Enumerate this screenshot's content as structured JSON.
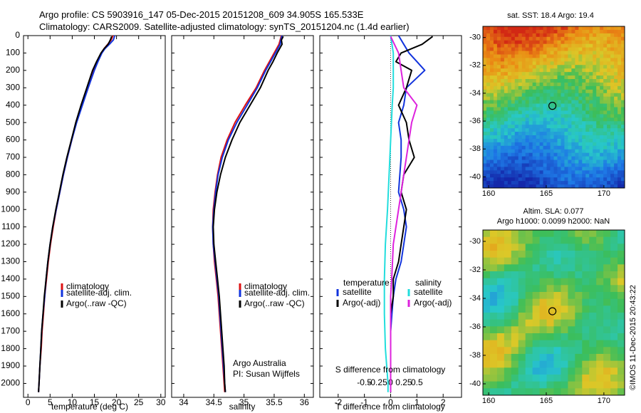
{
  "header": {
    "line1": "Argo profile: CS 5903916_147 05-Dec-2015 20151208_609 34.905S 165.533E",
    "line2": "Climatology: CARS2009. Satellite-adjusted climatology: synTS_20151204.nc (1.4d earlier)"
  },
  "colors": {
    "red": "#dd1111",
    "blue": "#1133dd",
    "black": "#000000",
    "cyan": "#22dddd",
    "magenta": "#dd22dd"
  },
  "chart_data": [
    {
      "type": "line",
      "xlabel": "temperature (deg C)",
      "ylim": [
        2080,
        0
      ],
      "xlim": [
        -1,
        31
      ],
      "xticks": [
        0,
        5,
        10,
        15,
        20,
        25,
        30
      ],
      "yticks": [
        0,
        100,
        200,
        300,
        400,
        500,
        600,
        700,
        800,
        900,
        1000,
        1100,
        1200,
        1300,
        1400,
        1500,
        1600,
        1700,
        1800,
        1900,
        2000
      ],
      "legend": [
        "climatology",
        "satellite-adj. clim.",
        "Argo(..raw -QC)"
      ],
      "series": [
        {
          "name": "climatology",
          "color": "red",
          "depth": [
            0,
            25,
            50,
            75,
            100,
            150,
            200,
            300,
            400,
            500,
            600,
            700,
            800,
            900,
            1000,
            1100,
            1200,
            1300,
            1400,
            1500,
            1600,
            1700,
            1800,
            1900,
            2000,
            2050
          ],
          "values": [
            19.2,
            18.8,
            18.0,
            17.2,
            16.6,
            15.7,
            14.9,
            13.6,
            12.2,
            10.9,
            9.9,
            8.9,
            8.0,
            7.2,
            6.4,
            5.7,
            5.1,
            4.6,
            4.2,
            3.8,
            3.5,
            3.2,
            3.0,
            2.7,
            2.5,
            2.4
          ]
        },
        {
          "name": "satellite-adj. clim.",
          "color": "blue",
          "depth": [
            0,
            25,
            50,
            75,
            100,
            150,
            200,
            300,
            400,
            500,
            600,
            700,
            800,
            900,
            1000,
            1100,
            1200,
            1300,
            1400,
            1500,
            1600,
            1700,
            1800,
            1900,
            2000,
            2050
          ],
          "values": [
            19.6,
            19.3,
            18.4,
            17.4,
            16.7,
            15.8,
            15.0,
            13.6,
            12.3,
            11.0,
            9.9,
            8.9,
            8.0,
            7.2,
            6.4,
            5.6,
            5.0,
            4.5,
            4.1,
            3.8,
            3.4,
            3.1,
            2.9,
            2.7,
            2.5,
            2.4
          ]
        },
        {
          "name": "Argo(..raw -QC)",
          "color": "black",
          "depth": [
            5,
            25,
            50,
            75,
            100,
            150,
            200,
            300,
            400,
            500,
            600,
            700,
            800,
            900,
            1000,
            1100,
            1200,
            1300,
            1400,
            1500,
            1600,
            1700,
            1800,
            1900,
            2000,
            2050
          ],
          "values": [
            18.9,
            18.6,
            18.1,
            17.2,
            16.5,
            15.5,
            14.6,
            13.3,
            12.0,
            10.8,
            9.8,
            8.8,
            7.9,
            7.1,
            6.3,
            5.6,
            5.0,
            4.5,
            4.1,
            3.7,
            3.4,
            3.1,
            2.9,
            2.7,
            2.5,
            2.4
          ]
        }
      ]
    },
    {
      "type": "line",
      "xlabel": "salinity",
      "ylim": [
        2080,
        0
      ],
      "xlim": [
        33.8,
        36.15
      ],
      "xticks": [
        34,
        34.5,
        35,
        35.5,
        36
      ],
      "legend": [
        "climatology",
        "satellite-adj. clim.",
        "Argo(..raw -QC)"
      ],
      "annotation": [
        "Argo Australia",
        "PI: Susan Wijffels"
      ],
      "series": [
        {
          "name": "climatology",
          "color": "red",
          "depth": [
            0,
            25,
            50,
            100,
            150,
            200,
            300,
            400,
            500,
            600,
            700,
            800,
            900,
            1000,
            1100,
            1200,
            1300,
            1400,
            1500,
            1600,
            1700,
            1800,
            1900,
            2000,
            2050
          ],
          "values": [
            35.62,
            35.6,
            35.58,
            35.5,
            35.42,
            35.34,
            35.2,
            35.02,
            34.85,
            34.72,
            34.62,
            34.56,
            34.52,
            34.49,
            34.48,
            34.49,
            34.51,
            34.54,
            34.57,
            34.59,
            34.61,
            34.63,
            34.65,
            34.67,
            34.68
          ]
        },
        {
          "name": "satellite-adj. clim.",
          "color": "blue",
          "depth": [
            0,
            25,
            50,
            100,
            150,
            200,
            300,
            400,
            500,
            600,
            700,
            800,
            900,
            1000,
            1100,
            1200,
            1300,
            1400,
            1500,
            1600,
            1700,
            1800,
            1900,
            2000,
            2050
          ],
          "values": [
            35.63,
            35.61,
            35.6,
            35.52,
            35.44,
            35.36,
            35.22,
            35.05,
            34.88,
            34.74,
            34.64,
            34.57,
            34.53,
            34.5,
            34.48,
            34.49,
            34.52,
            34.55,
            34.58,
            34.6,
            34.62,
            34.64,
            34.66,
            34.68,
            34.69
          ]
        },
        {
          "name": "Argo(..raw -QC)",
          "color": "black",
          "depth": [
            5,
            25,
            50,
            100,
            150,
            200,
            300,
            400,
            500,
            600,
            700,
            800,
            900,
            1000,
            1100,
            1200,
            1300,
            1400,
            1500,
            1600,
            1700,
            1800,
            1900,
            2000,
            2050
          ],
          "values": [
            35.65,
            35.62,
            35.63,
            35.55,
            35.48,
            35.4,
            35.27,
            35.1,
            34.93,
            34.8,
            34.69,
            34.61,
            34.55,
            34.51,
            34.49,
            34.5,
            34.53,
            34.56,
            34.59,
            34.61,
            34.63,
            34.65,
            34.67,
            34.68,
            34.69
          ]
        }
      ]
    },
    {
      "type": "line",
      "xlabel": "T difference from climatology",
      "top_label": "S difference from climatology",
      "ylim": [
        2080,
        0
      ],
      "xlim": [
        -2.7,
        2.7
      ],
      "xticks": [
        -2,
        -1,
        0,
        1,
        2
      ],
      "top_ticks": [
        "-0.5",
        "-0.25",
        "0",
        "0.25",
        "0.5"
      ],
      "legend_left_title": "temperature",
      "legend_right_title": "salinity",
      "legend": [
        "satellite",
        "Argo(-adj)",
        "satellite",
        "Argo(-adj)"
      ],
      "series": [
        {
          "name": "satellite",
          "color": "blue",
          "depth": [
            0,
            50,
            100,
            150,
            200,
            300,
            400,
            500,
            600,
            700,
            800,
            900,
            1000,
            1100,
            1200,
            1300,
            1400,
            1500,
            1600,
            1700,
            1800,
            1900,
            2000,
            2050
          ],
          "values": [
            0.3,
            0.5,
            0.7,
            1.0,
            1.3,
            0.6,
            0.5,
            0.3,
            0.4,
            0.4,
            0.35,
            0.3,
            0.5,
            0.6,
            0.5,
            0.4,
            0.2,
            0.1,
            0.05,
            0.0,
            0.0,
            0.0,
            0.0,
            0.0
          ]
        },
        {
          "name": "Argo(-adj)",
          "color": "black",
          "depth": [
            5,
            50,
            100,
            150,
            200,
            300,
            400,
            500,
            600,
            700,
            800,
            900,
            1000,
            1100,
            1200,
            1300,
            1400,
            1500,
            1600,
            1700,
            1800,
            1900,
            2000,
            2050
          ],
          "values": [
            1.6,
            1.2,
            0.4,
            0.2,
            0.8,
            0.6,
            0.3,
            0.6,
            0.7,
            0.9,
            0.5,
            0.4,
            0.6,
            0.5,
            0.4,
            0.3,
            0.1,
            0.1,
            0.0,
            0.0,
            0.0,
            0.0,
            0.0,
            0.0
          ]
        },
        {
          "name": "satellite",
          "color": "cyan",
          "depth": [
            0,
            100,
            200,
            300,
            400,
            600,
            800,
            1000,
            1200,
            1400,
            1600,
            1800,
            2000,
            2050
          ],
          "values": [
            0.0,
            0.05,
            0.05,
            0.05,
            0.03,
            0.0,
            -0.03,
            -0.06,
            -0.1,
            -0.12,
            -0.12,
            -0.1,
            -0.05,
            -0.05
          ]
        },
        {
          "name": "Argo(-adj)",
          "color": "magenta",
          "depth": [
            5,
            100,
            200,
            300,
            400,
            500,
            600,
            700,
            800,
            1000,
            1200,
            1400,
            1500,
            2050
          ],
          "values": [
            0.0,
            0.15,
            0.2,
            0.25,
            0.5,
            0.4,
            0.35,
            0.3,
            0.25,
            0.15,
            0.05,
            0.02,
            0.0,
            0.0
          ]
        }
      ]
    },
    {
      "type": "heatmap",
      "title": "sat. SST: 18.4  Argo: 19.4",
      "xticks": [
        160,
        165,
        170
      ],
      "yticks": [
        -30,
        -32,
        -34,
        -36,
        -38,
        -40
      ],
      "xlim": [
        159.5,
        171.8
      ],
      "ylim": [
        -40.8,
        -29.2
      ],
      "marker": {
        "lon": 165.533,
        "lat": -34.905
      }
    },
    {
      "type": "heatmap",
      "title": "Altim. SLA: 0.077",
      "subtitle": "Argo h1000: 0.0099 h2000: NaN",
      "xticks": [
        160,
        165,
        170
      ],
      "yticks": [
        -30,
        -32,
        -34,
        -36,
        -38,
        -40
      ],
      "xlim": [
        159.5,
        171.8
      ],
      "ylim": [
        -40.8,
        -29.2
      ],
      "marker": {
        "lon": 165.533,
        "lat": -34.905
      }
    }
  ],
  "footer_stamp": "©IMOS 11-Dec-2015 20:43:22"
}
